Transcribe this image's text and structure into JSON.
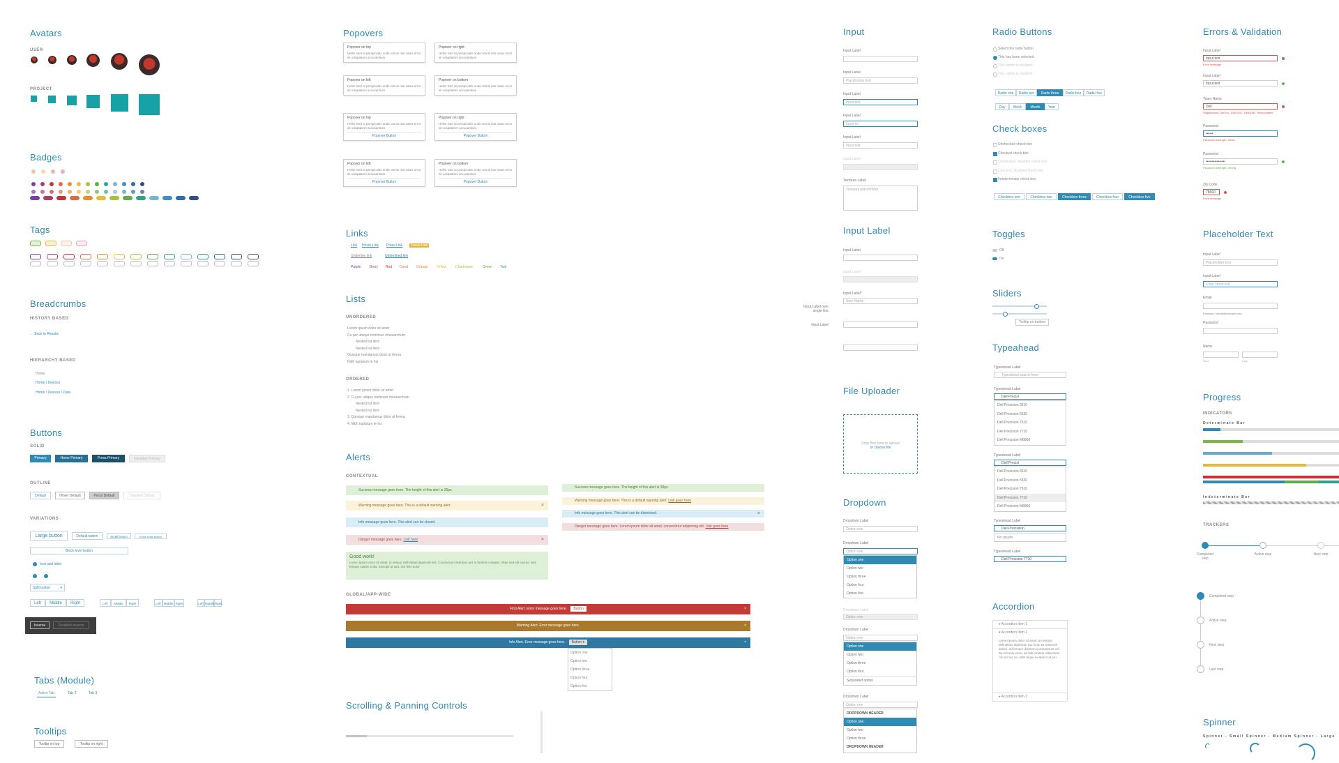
{
  "sections": {
    "avatars": "Avatars",
    "badges": "Badges",
    "tags": "Tags",
    "breadcrumbs": "Breadcrumbs",
    "buttons": "Buttons",
    "tabs": "Tabs (Module)",
    "tooltips": "Tooltips",
    "popovers": "Popovers",
    "links": "Links",
    "lists": "Lists",
    "alerts": "Alerts",
    "scrolling": "Scrolling & Panning Controls",
    "input": "Input",
    "input_label": "Input Label",
    "file_uploader": "File Uploader",
    "dropdown": "Dropdown",
    "radio": "Radio Buttons",
    "checkboxes": "Check boxes",
    "toggles": "Toggles",
    "sliders": "Sliders",
    "typeahead": "Typeahead",
    "accordion": "Accordion",
    "errors": "Errors & Validation",
    "placeholder": "Placeholder Text",
    "progress": "Progress",
    "spinner": "Spinner"
  },
  "avatars": {
    "user_label": "USER",
    "project_label": "PROJECT"
  },
  "breadcrumbs": {
    "history_label": "HISTORY BASED",
    "back": "← Back to Results",
    "hierarchy_label": "HIERARCHY BASED",
    "home": "Home",
    "path1": "Home / Devices",
    "path2": "Home / Devices / Data"
  },
  "buttons": {
    "solid_label": "SOLID",
    "solid": [
      "Primary",
      "Hover Primary",
      "Press Primary",
      "Disabled Primary"
    ],
    "outline_label": "OUTLINE",
    "outline": [
      "Default",
      "Hover Default",
      "Press Default",
      "Disabled Default"
    ],
    "variations_label": "VARIATIONS",
    "sizes": [
      "Large button",
      "Default button",
      "Small button",
      "Extra small button"
    ],
    "block": "Block level button",
    "icon_label": "Icon and label",
    "split": "Split button",
    "group1": [
      "Left",
      "Middle",
      "Right"
    ],
    "group2": [
      "Left",
      "Middle",
      "Right"
    ],
    "group3": [
      "Left",
      "Middle",
      "Right"
    ],
    "group4": [
      "Left",
      "Middle",
      "Right"
    ],
    "inverse": "Inverse",
    "inverse_disabled": "Disabled Inverse"
  },
  "tabs": [
    "Active Tab",
    "Tab 2",
    "Tab 3"
  ],
  "tooltips": [
    "Tooltip on top",
    "Tooltip on right"
  ],
  "popovers": [
    {
      "title": "Popover on top",
      "body": "Hello! Sed ut perspiciatis unde omnis iste natus error sit voluptatem accusantium"
    },
    {
      "title": "Popover on right",
      "body": "Hello! Sed ut perspiciatis unde omnis iste natus error sit voluptatem accusantium"
    },
    {
      "title": "Popover on left",
      "body": "Hello! Sed ut perspiciatis unde omnis iste natus error sit voluptatem accusantium"
    },
    {
      "title": "Popover on bottom",
      "body": "Hello! Sed ut perspiciatis unde omnis iste natus error sit voluptatem accusantium"
    },
    {
      "title": "Popover on top",
      "body": "Hello! Sed ut perspiciatis unde omnis iste natus error sit voluptatem accusantium",
      "button": "Popover Button"
    },
    {
      "title": "Popover on right",
      "body": "Hello! Sed ut perspiciatis unde omnis iste natus error sit voluptatem accusantium",
      "button": "Popover Button"
    },
    {
      "title": "Popover on left",
      "body": "Hello! Sed ut perspiciatis unde omnis iste natus error sit voluptatem accusantium",
      "button": "Popover Button"
    },
    {
      "title": "Popover on bottom",
      "body": "Hello! Sed ut perspiciatis unde omnis iste natus error sit voluptatem accusantium",
      "button": "Popover Button"
    }
  ],
  "links": {
    "row1": [
      "Link",
      "Hover Link",
      "Press Link",
      "Focus Link"
    ],
    "row2": [
      "Underline link",
      "Underlined link"
    ],
    "colors": [
      "Purple",
      "Berry",
      "Red",
      "Coral",
      "Orange",
      "Yellow",
      "Chartreuse",
      "Green",
      "Teal"
    ]
  },
  "lists": {
    "unordered_label": "UNORDERED",
    "unordered": [
      "Lorem ipsum dolor sit amet",
      "Cu per ubique nominavi mnesarchum",
      "Nested list item",
      "Nested list item",
      "Quisque mandamus dolor ut ferma",
      "Nibh luptatum te his"
    ],
    "ordered_label": "ORDERED",
    "ordered": [
      "1. Lorem ipsum dolor sit amet",
      "2. Cu per ubique nominavi mnesarchum",
      "Nested list item",
      "Nested list item",
      "3. Quisque mandamus dolor ut ferma",
      "4. Nibh luptatum te his"
    ]
  },
  "alerts": {
    "contextual_label": "CONTEXTUAL",
    "success": "Success message goes here. The height of this alert is 30px.",
    "warning": "Warning message goes here. This is a default warning alert.",
    "info": "Info message goes here. This alert can be closed.",
    "danger": "Danger message goes here.",
    "danger_link": "Link here",
    "success2": "Success message goes here. The height of this alert is 30px.",
    "warning2": "Warning message goes here. This is a default warning alert.",
    "warning2_link": "Link goes here",
    "info2": "Info message goes here. This alert can be dismissed.",
    "danger2": "Danger message goes here. Lorem ipsum dolor sit amet, consectetur adipiscing elit.",
    "danger2_link": "Link goes here",
    "good_title": "Good work!",
    "good_body": "Lorem ipsum dolor sit amet, ut tempor definiebas dignissim est. Contractum interdum per at facilisis volutpat. Vitae sed elit cursus. Sed tempor sapien nulla. Suscipit at sed, nisi felis dolor.",
    "global_label": "GLOBAL/APP-WIDE",
    "g_error": "First Alert. Error message goes here.",
    "g_error_btn": "Button",
    "g_warning": "Warning Alert. Error message goes here.",
    "g_info": "Info Alert. Error message goes here.",
    "g_info_btn": "Button ▾",
    "menu": [
      "Option one",
      "Option two",
      "Option three",
      "Option four",
      "Option five"
    ]
  },
  "input": {
    "labels": [
      "Input Label",
      "Input Label",
      "Input Label",
      "Input Label",
      "Input Label",
      "Input Label",
      "Textarea Label"
    ],
    "placeholders": [
      "",
      "Placeholder text",
      "Input text",
      "Input te|",
      "Input text",
      "",
      "Textarea placeholder"
    ]
  },
  "input_label": {
    "top_label": "Input Label",
    "disabled_label": "Input Label",
    "required_label": "Input Label*",
    "required_placeholder": "User Name",
    "side_label_multi": "Input Label over single line",
    "side_label": "Input Label"
  },
  "file_uploader": {
    "text": "Drop files here to upload",
    "link": "or choose file"
  },
  "dropdown": {
    "label": "Dropdown Label",
    "value": "Option one",
    "options": [
      "Option one",
      "Option two",
      "Option three",
      "Option four",
      "Option five"
    ],
    "disabled_label": "Dropdown Label",
    "separated": "Separated option",
    "group_header": "DROPDOWN HEADER",
    "group_header2": "DROPDOWN HEADER"
  },
  "radio": {
    "items": [
      "Select this radio button",
      "This has been selected",
      "This option is disabled",
      "This option is disabled"
    ],
    "seg1": [
      "Radio one",
      "Radio two",
      "Radio three",
      "Radio four",
      "Radio five"
    ],
    "seg2": [
      "Day",
      "Week",
      "Month",
      "Year"
    ]
  },
  "checkboxes": {
    "items": [
      "Unchecked check box",
      "Checked check box",
      "Unchecked, disabled check box",
      "Checked, disabled check box",
      "Indeterminate check box"
    ],
    "seg": [
      "Checkbox one",
      "Checkbox two",
      "Checkbox three",
      "Checkbox four",
      "Checkbox five"
    ]
  },
  "toggles": {
    "off": "Off",
    "on": "On"
  },
  "sliders": {
    "tooltip": "Tooltip on bottom"
  },
  "typeahead": {
    "label": "Typeahead Label",
    "placeholder": "Typeahead search here",
    "query": "Dell Precisi",
    "results": [
      "Dell Precision 3510",
      "Dell Precision 5520",
      "Dell Precision 7510",
      "Dell Precision 7710",
      "Dell Precision M6800"
    ],
    "query3": "Dell Precisiiion",
    "no_results": "No results",
    "query4": "Dell Precision 7710"
  },
  "accordion": {
    "items": [
      "Accordion Item 1",
      "Accordion Item 2",
      "Accordion Item 3"
    ],
    "body": "Lorem ipsum dolor sit amet, an tempor definiebas dignissim est. Eum ex maiorum dolore, ad tempor dolorem consectetuer vel. Ea est sale iriure, ad falli ornatus elaboraret. Ad sint ius no, nibh reque inciderint at pro."
  },
  "errors": {
    "labels": [
      "Input Label",
      "Input Label",
      "Team Name",
      "Password",
      "Password",
      "Zip Code"
    ],
    "values": [
      "Input text",
      "Input text",
      "Dell",
      "••••••",
      "••••••••••••••••",
      "78660"
    ],
    "msgs": [
      "Error message",
      "",
      "Suggestions: Dell Inc, Dell EMC, Dell/EMC Technologies",
      "Password strength: Weak",
      "Password strength: Strong",
      "Error message"
    ]
  },
  "placeholder": {
    "labels": [
      "Input Label",
      "Input Label",
      "Email",
      "Password",
      "Name"
    ],
    "placeholders": [
      "Placeholder text",
      "Enter some text",
      "",
      "",
      ""
    ],
    "email_hint": "Example: name@example.com",
    "name_parts": [
      "First",
      "Last"
    ]
  },
  "progress": {
    "indicators_label": "INDICATORS",
    "determinate": "Determinate Bar",
    "indeterminate": "Indeterminate Bar",
    "values": [
      0.13,
      0.29,
      0.51,
      0.76,
      1.0
    ],
    "colors": [
      "#2f8ab4",
      "#7ab648",
      "#66aad0",
      "#e6b83a",
      "#c9303a"
    ],
    "trackers_label": "TRACKERS",
    "steps": [
      "Completed step",
      "Active step",
      "Next step"
    ],
    "vsteps": [
      "Completed step",
      "Active step",
      "Next step",
      "Last step"
    ]
  },
  "spinner": {
    "labels": [
      "Spinner - Small",
      "Spinner - Medium",
      "Spinner - Large"
    ]
  }
}
